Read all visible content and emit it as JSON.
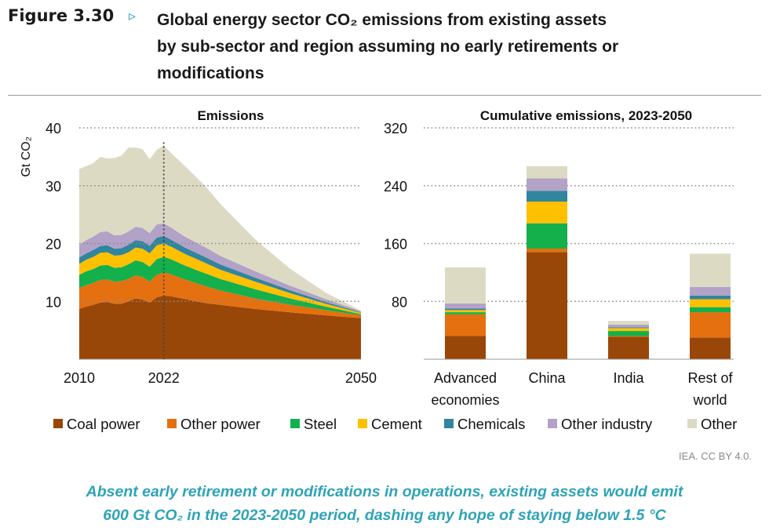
{
  "header": {
    "figure_label": "Figure 3.30",
    "arrow": "▹",
    "title_line1": "Global energy sector CO₂ emissions from existing assets",
    "title_line2": "by sub-sector and region assuming no early retirements or",
    "title_line3": "modifications"
  },
  "source": "IEA. CC BY 4.0.",
  "caption": {
    "line1": "Absent early retirement or modifications in operations, existing assets would emit",
    "line2": "600 Gt CO₂ in the 2023-2050 period, dashing any hope of staying below 1.5 °C"
  },
  "chart_data": [
    {
      "type": "area",
      "title": "Emissions",
      "ylabel": "Gt CO₂",
      "xlim": [
        2010,
        2050
      ],
      "ylim": [
        0,
        40
      ],
      "yticks": [
        10,
        20,
        30,
        40
      ],
      "xticks": [
        2010,
        2022,
        2050
      ],
      "vline": 2022,
      "grid": "horizontal dotted",
      "x": [
        2010,
        2011,
        2012,
        2013,
        2014,
        2015,
        2016,
        2017,
        2018,
        2019,
        2020,
        2021,
        2022,
        2023,
        2025,
        2028,
        2030,
        2035,
        2040,
        2045,
        2050
      ],
      "series": [
        {
          "name": "Coal power",
          "color": "#994708",
          "values": [
            8.7,
            9.1,
            9.4,
            9.8,
            9.9,
            9.6,
            9.6,
            10.0,
            10.5,
            10.3,
            9.8,
            10.7,
            11.0,
            10.9,
            10.4,
            9.7,
            9.4,
            8.7,
            8.1,
            7.6,
            7.1
          ]
        },
        {
          "name": "Other power",
          "color": "#e5700f",
          "values": [
            3.6,
            3.7,
            3.8,
            3.9,
            3.9,
            3.8,
            3.9,
            3.9,
            4.0,
            3.9,
            3.6,
            3.9,
            4.0,
            3.8,
            3.4,
            2.9,
            2.5,
            1.8,
            1.3,
            0.9,
            0.5
          ]
        },
        {
          "name": "Steel",
          "color": "#14b04c",
          "values": [
            2.3,
            2.4,
            2.4,
            2.5,
            2.5,
            2.4,
            2.4,
            2.5,
            2.6,
            2.6,
            2.6,
            2.7,
            2.7,
            2.6,
            2.4,
            2.2,
            2.0,
            1.6,
            1.1,
            0.6,
            0.2
          ]
        },
        {
          "name": "Cement",
          "color": "#ffc000",
          "values": [
            1.9,
            2.0,
            2.1,
            2.2,
            2.2,
            2.1,
            2.1,
            2.1,
            2.2,
            2.3,
            2.3,
            2.4,
            2.3,
            2.2,
            2.0,
            1.8,
            1.6,
            1.3,
            0.9,
            0.5,
            0.2
          ]
        },
        {
          "name": "Chemicals",
          "color": "#31859c",
          "values": [
            1.1,
            1.1,
            1.2,
            1.2,
            1.2,
            1.2,
            1.2,
            1.3,
            1.3,
            1.3,
            1.3,
            1.3,
            1.3,
            1.2,
            1.1,
            1.0,
            0.9,
            0.7,
            0.5,
            0.3,
            0.1
          ]
        },
        {
          "name": "Other industry",
          "color": "#b3a2c7",
          "values": [
            2.2,
            2.3,
            2.3,
            2.4,
            2.4,
            2.3,
            2.3,
            2.3,
            2.3,
            2.3,
            2.2,
            2.3,
            2.2,
            2.1,
            1.9,
            1.7,
            1.5,
            1.1,
            0.8,
            0.5,
            0.2
          ]
        },
        {
          "name": "Other",
          "color": "#dddac4",
          "values": [
            13.1,
            12.8,
            12.7,
            13.0,
            12.6,
            13.4,
            13.7,
            14.5,
            13.7,
            13.6,
            12.8,
            12.9,
            13.5,
            12.9,
            12.2,
            10.5,
            9.0,
            5.5,
            2.9,
            1.1,
            0.1
          ]
        }
      ]
    },
    {
      "type": "bar",
      "stacked": true,
      "title": "Cumulative emissions, 2023-2050",
      "ylim": [
        0,
        320
      ],
      "yticks": [
        80,
        160,
        240,
        320
      ],
      "grid": "horizontal dotted",
      "categories": [
        [
          "Advanced",
          "economies"
        ],
        [
          "China"
        ],
        [
          "India"
        ],
        [
          "Rest of",
          "world"
        ]
      ],
      "series": [
        {
          "name": "Coal power",
          "color": "#994708",
          "values": [
            32,
            148,
            31,
            30
          ]
        },
        {
          "name": "Other power",
          "color": "#e5700f",
          "values": [
            30,
            5,
            1,
            35
          ]
        },
        {
          "name": "Steel",
          "color": "#14b04c",
          "values": [
            3,
            35,
            7,
            7
          ]
        },
        {
          "name": "Cement",
          "color": "#ffc000",
          "values": [
            3,
            30,
            4,
            11
          ]
        },
        {
          "name": "Chemicals",
          "color": "#31859c",
          "values": [
            2,
            15,
            1,
            5
          ]
        },
        {
          "name": "Other industry",
          "color": "#b3a2c7",
          "values": [
            7,
            17,
            4,
            12
          ]
        },
        {
          "name": "Other",
          "color": "#dddac4",
          "values": [
            50,
            17,
            5,
            46
          ]
        }
      ]
    }
  ]
}
